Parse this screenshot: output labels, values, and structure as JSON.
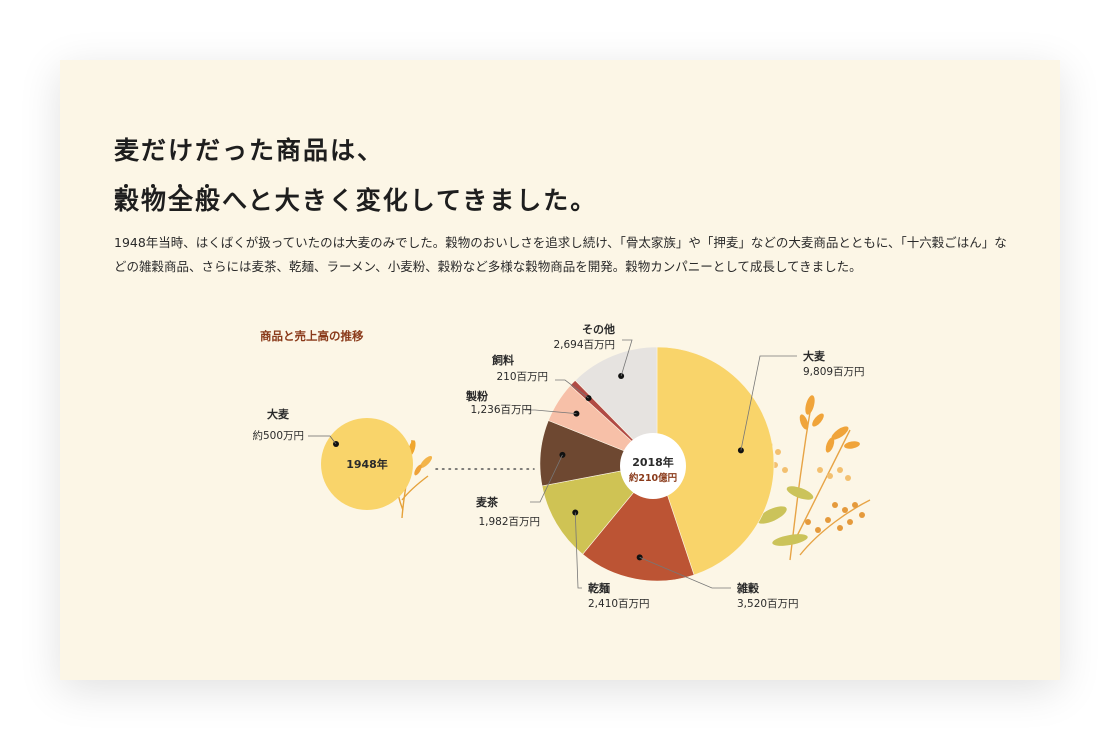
{
  "headline": {
    "line1": "麦だけだった商品は、",
    "line2_emph": "穀物全般",
    "line2_rest": "へと大きく変化してきました。"
  },
  "description": "1948年当時、はくばくが扱っていたのは大麦のみでした。穀物のおいしさを追求し続け、「骨太家族」や「押麦」などの大麦商品とともに、「十六穀ごはん」などの雑穀商品、さらには麦茶、乾麺、ラーメン、小麦粉、穀粉など多様な穀物商品を開発。穀物カンパニーとして成長してきました。",
  "chart_title": "商品と売上高の推移",
  "chart_data": [
    {
      "type": "pie",
      "center_label": "1948年",
      "slices": [
        {
          "name": "大麦",
          "value_label": "約500万円",
          "value": 500,
          "unit": "万円",
          "color": "#f9d46a"
        }
      ]
    },
    {
      "type": "pie",
      "center_label": "2018年",
      "center_sublabel": "約210億円",
      "unit": "百万円",
      "slices": [
        {
          "name": "大麦",
          "value": 9809,
          "value_label": "9,809百万円",
          "color": "#f9d46a"
        },
        {
          "name": "雑穀",
          "value": 3520,
          "value_label": "3,520百万円",
          "color": "#bc5434"
        },
        {
          "name": "乾麺",
          "value": 2410,
          "value_label": "2,410百万円",
          "color": "#cfc354"
        },
        {
          "name": "麦茶",
          "value": 1982,
          "value_label": "1,982百万円",
          "color": "#6e4831"
        },
        {
          "name": "製粉",
          "value": 1236,
          "value_label": "1,236百万円",
          "color": "#f7c0a8"
        },
        {
          "name": "飼料",
          "value": 210,
          "value_label": "210百万円",
          "color": "#b14a44"
        },
        {
          "name": "その他",
          "value": 2694,
          "value_label": "2,694百万円",
          "color": "#e6e3e0"
        }
      ]
    }
  ],
  "colors": {
    "card_bg": "#fcf6e6",
    "title_accent": "#8a3a1a",
    "center_sublabel": "#8a3a1a"
  }
}
